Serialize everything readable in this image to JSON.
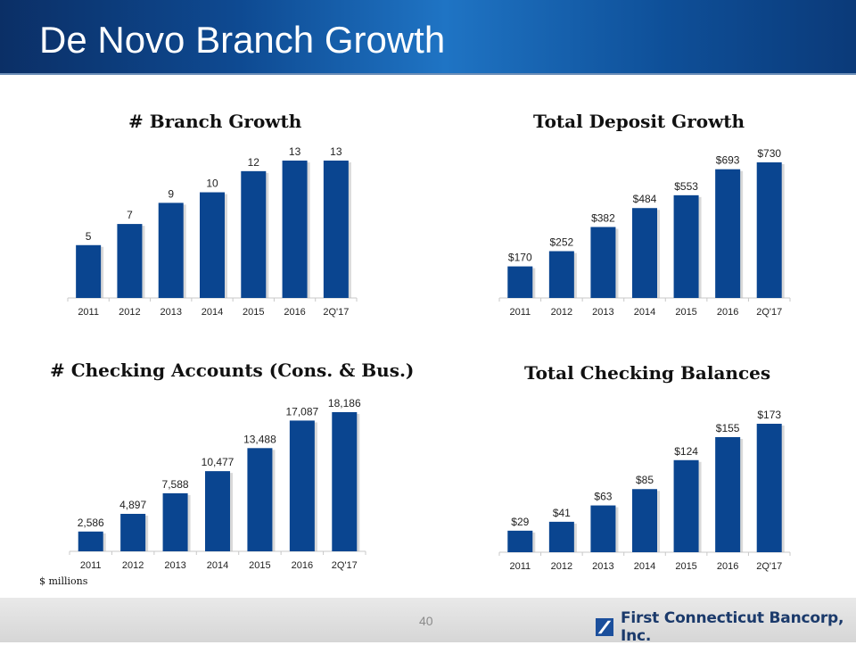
{
  "slide": {
    "title": "De Novo Branch Growth",
    "footnote": "$ millions",
    "page_number": "40",
    "company": "First Connecticut Bancorp, Inc."
  },
  "colors": {
    "bar": "#0a4590",
    "header_dark": "#0b2f66",
    "header_light": "#1f74c4",
    "logo_text": "#1b3a6b"
  },
  "chart_data": [
    {
      "type": "bar",
      "title": "# Branch Growth",
      "categories": [
        "2011",
        "2012",
        "2013",
        "2014",
        "2015",
        "2016",
        "2Q'17"
      ],
      "values": [
        5,
        7,
        9,
        10,
        12,
        13,
        13
      ],
      "labels": [
        "5",
        "7",
        "9",
        "10",
        "12",
        "13",
        "13"
      ],
      "ylim": [
        0,
        13
      ]
    },
    {
      "type": "bar",
      "title": "Total Deposit Growth",
      "categories": [
        "2011",
        "2012",
        "2013",
        "2014",
        "2015",
        "2016",
        "2Q'17"
      ],
      "values": [
        170,
        252,
        382,
        484,
        553,
        693,
        730
      ],
      "labels": [
        "$170",
        "$252",
        "$382",
        "$484",
        "$553",
        "$693",
        "$730"
      ],
      "ylim": [
        0,
        730
      ]
    },
    {
      "type": "bar",
      "title": "# Checking Accounts (Cons. & Bus.)",
      "categories": [
        "2011",
        "2012",
        "2013",
        "2014",
        "2015",
        "2016",
        "2Q'17"
      ],
      "values": [
        2586,
        4897,
        7588,
        10477,
        13488,
        17087,
        18186
      ],
      "labels": [
        "2,586",
        "4,897",
        "7,588",
        "10,477",
        "13,488",
        "17,087",
        "18,186"
      ],
      "ylim": [
        0,
        18186
      ]
    },
    {
      "type": "bar",
      "title": "Total Checking Balances",
      "categories": [
        "2011",
        "2012",
        "2013",
        "2014",
        "2015",
        "2016",
        "2Q'17"
      ],
      "values": [
        29,
        41,
        63,
        85,
        124,
        155,
        173
      ],
      "labels": [
        "$29",
        "$41",
        "$63",
        "$85",
        "$124",
        "$155",
        "$173"
      ],
      "ylim": [
        0,
        173
      ]
    }
  ]
}
